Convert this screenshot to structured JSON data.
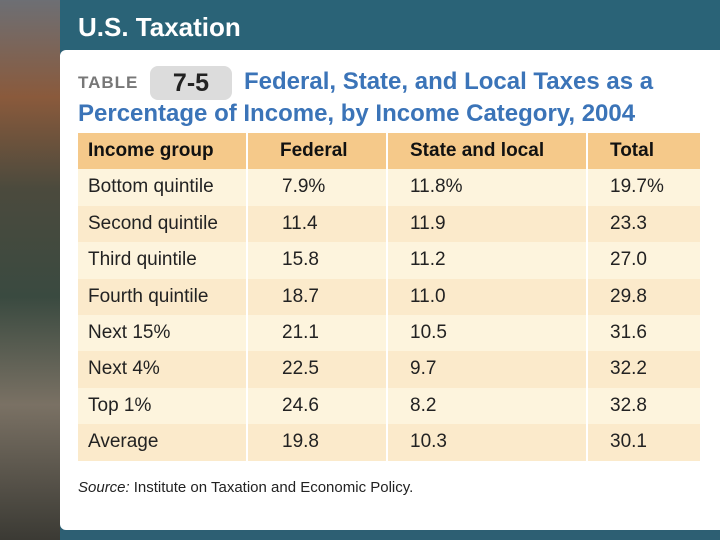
{
  "header": {
    "title": "U.S. Taxation"
  },
  "table": {
    "label": "TABLE",
    "number": "7-5",
    "title": "Federal, State, and Local Taxes as a Percentage of Income, by Income Category, 2004",
    "columns": [
      "Income group",
      "Federal",
      "State and local",
      "Total"
    ],
    "rows": [
      [
        "Bottom quintile",
        "7.9%",
        "11.8%",
        "19.7%"
      ],
      [
        "Second quintile",
        "11.4",
        "11.9",
        "23.3"
      ],
      [
        "Third quintile",
        "15.8",
        "11.2",
        "27.0"
      ],
      [
        "Fourth quintile",
        "18.7",
        "11.0",
        "29.8"
      ],
      [
        "Next 15%",
        "21.1",
        "10.5",
        "31.6"
      ],
      [
        "Next 4%",
        "22.5",
        "9.7",
        "32.2"
      ],
      [
        "Top 1%",
        "24.6",
        "8.2",
        "32.8"
      ],
      [
        "Average",
        "19.8",
        "10.3",
        "30.1"
      ]
    ],
    "source": {
      "label": "Source:",
      "text": "Institute on Taxation and Economic Policy."
    }
  }
}
